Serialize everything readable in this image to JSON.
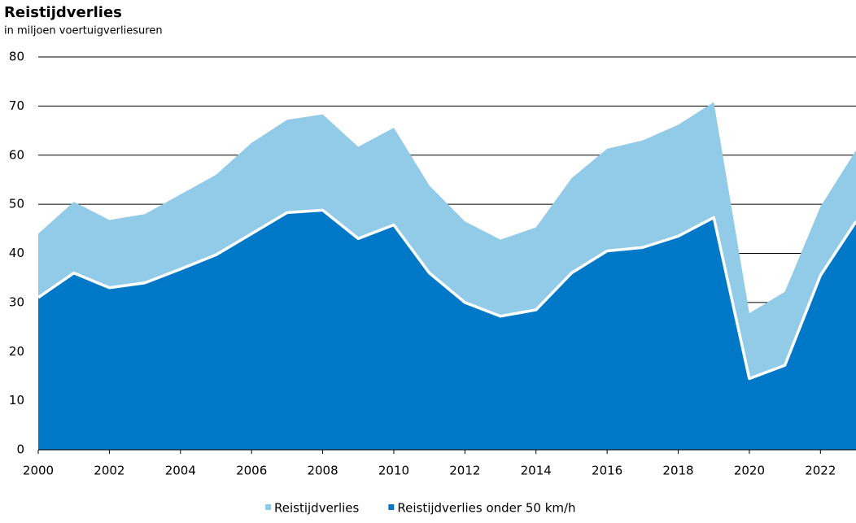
{
  "chart_data": {
    "type": "area",
    "title": "Reistijdverlies",
    "subtitle": "in miljoen voertuigverliesuren",
    "x": [
      2000,
      2001,
      2002,
      2003,
      2004,
      2005,
      2006,
      2007,
      2008,
      2009,
      2010,
      2011,
      2012,
      2013,
      2014,
      2015,
      2016,
      2017,
      2018,
      2019,
      2020,
      2021,
      2022,
      2023
    ],
    "series": [
      {
        "name": "Reistijdverlies",
        "color": "#92cbe7",
        "values": [
          44,
          50.5,
          46.8,
          48,
          52,
          56,
          62.5,
          67.2,
          68.3,
          61.7,
          65.6,
          53.8,
          46.5,
          42.8,
          45.3,
          55.3,
          61.3,
          63,
          66.2,
          70.8,
          27.8,
          32.2,
          49.5,
          61
        ]
      },
      {
        "name": "Reistijdverlies onder 50 km/h",
        "color": "#0078c8",
        "values": [
          31,
          36,
          33,
          34,
          36.8,
          39.7,
          44,
          48.3,
          48.8,
          43,
          45.8,
          36,
          30,
          27.2,
          28.5,
          36,
          40.5,
          41.2,
          43.5,
          47.3,
          14.5,
          17.2,
          35.5,
          46.5
        ]
      }
    ],
    "xlim": [
      2000,
      2023
    ],
    "xticks": [
      2000,
      2002,
      2004,
      2006,
      2008,
      2010,
      2012,
      2014,
      2016,
      2018,
      2020,
      2022
    ],
    "ylim": [
      0,
      80
    ],
    "yticks": [
      0,
      10,
      20,
      30,
      40,
      50,
      60,
      70,
      80
    ],
    "grid": true
  }
}
